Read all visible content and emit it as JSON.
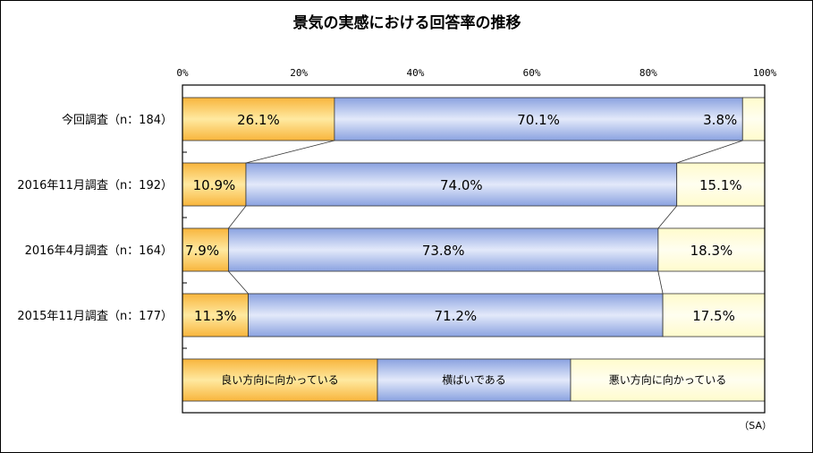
{
  "chart_data": {
    "type": "bar",
    "stacked": true,
    "orientation": "horizontal",
    "title": "景気の実感における回答率の推移",
    "categories": [
      "今回調査（n：184）",
      "2016年11月調査（n：192）",
      "2016年4月調査（n：164）",
      "2015年11月調査（n：177）"
    ],
    "series": [
      {
        "name": "良い方向に向かっている",
        "values": [
          26.1,
          10.9,
          7.9,
          11.3
        ],
        "labels": [
          "26.1%",
          "10.9%",
          "7.9%",
          "11.3%"
        ]
      },
      {
        "name": "横ばいである",
        "values": [
          70.1,
          74.0,
          73.8,
          71.2
        ],
        "labels": [
          "70.1%",
          "74.0%",
          "73.8%",
          "71.2%"
        ]
      },
      {
        "name": "悪い方向に向かっている",
        "values": [
          3.8,
          15.1,
          18.3,
          17.5
        ],
        "labels": [
          "3.8%",
          "15.1%",
          "18.3%",
          "17.5%"
        ]
      }
    ],
    "xlim": [
      0,
      100
    ],
    "ticks": [
      "0%",
      "20%",
      "40%",
      "60%",
      "80%",
      "100%"
    ],
    "note": "（SA）",
    "legend_position": "bottom",
    "series_lines": true,
    "colors": [
      "#f5c244",
      "#9db1e6",
      "#fffbcc"
    ]
  }
}
